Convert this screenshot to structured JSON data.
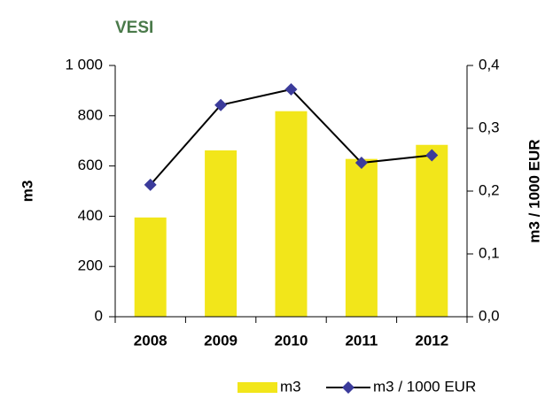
{
  "chart_data": {
    "type": "bar_line",
    "title": "VESI",
    "title_color": "#4a7a4a",
    "ylabel": "m3",
    "y2label": "m3 / 1000 EUR",
    "categories": [
      "2008",
      "2009",
      "2010",
      "2011",
      "2012"
    ],
    "series": [
      {
        "name": "m3",
        "type": "bar",
        "color": "#f2e61a",
        "values": [
          395,
          662,
          818,
          628,
          684
        ]
      },
      {
        "name": "m3 / 1000 EUR",
        "type": "line",
        "axis": "y2",
        "color": "#000000",
        "marker_color": "#3b3b9b",
        "values": [
          0.21,
          0.337,
          0.362,
          0.245,
          0.257
        ]
      }
    ],
    "ylim": [
      0,
      1000
    ],
    "yticks": [
      0,
      200,
      400,
      600,
      800,
      {
        "value": 1000,
        "label": "1 000"
      }
    ],
    "y2lim": [
      0,
      0.4
    ],
    "y2ticks": [
      {
        "value": 0,
        "label": "0,0"
      },
      {
        "value": 0.1,
        "label": "0,1"
      },
      {
        "value": 0.2,
        "label": "0,2"
      },
      {
        "value": 0.3,
        "label": "0,3"
      },
      {
        "value": 0.4,
        "label": "0,4"
      }
    ],
    "legend": "bottom"
  }
}
